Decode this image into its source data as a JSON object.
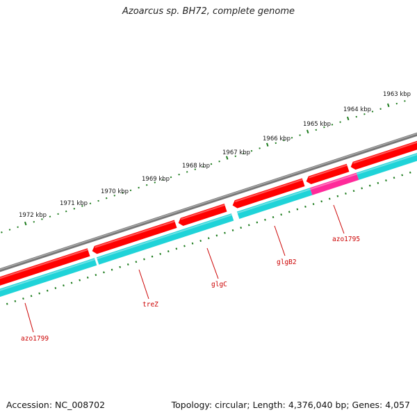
{
  "title": "Azoarcus sp. BH72, complete genome",
  "footer": {
    "accession": "Accession: NC_008702",
    "summary": "Topology: circular; Length: 4,376,040 bp; Genes: 4,057"
  },
  "colors": {
    "backbone": "#777777",
    "forward_gene": "#ff0000",
    "reverse_gene": "#1fd3d8",
    "highlight_gene": "#ff2a9a",
    "tick": "#1a7a1a",
    "label": "#cc0000"
  },
  "scale_labels": [
    "1963 kbp",
    "1964 kbp",
    "1965 kbp",
    "1966 kbp",
    "1967 kbp",
    "1968 kbp",
    "1969 kbp",
    "1970 kbp",
    "1971 kbp",
    "1972 kbp"
  ],
  "gene_labels": [
    "azo1795",
    "glgB2",
    "glgC",
    "treZ",
    "azo1799"
  ]
}
